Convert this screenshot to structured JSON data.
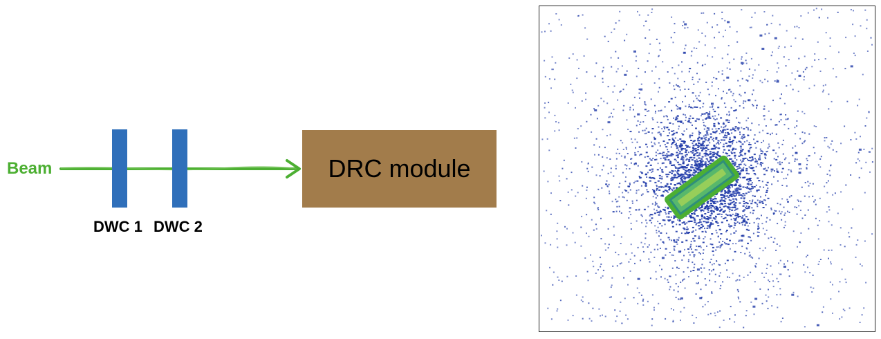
{
  "diagram": {
    "beam_label": "Beam",
    "dwc_labels": [
      "DWC 1",
      "DWC 2"
    ],
    "module_label": "DRC module",
    "colors": {
      "beam": "#4caf32",
      "dwc": "#2f6fba",
      "module": "#a27c4b",
      "hit_points": "#1f3aa8",
      "cluster_outline": "#4caf32",
      "cluster_fill": "#3d9a6e"
    }
  }
}
